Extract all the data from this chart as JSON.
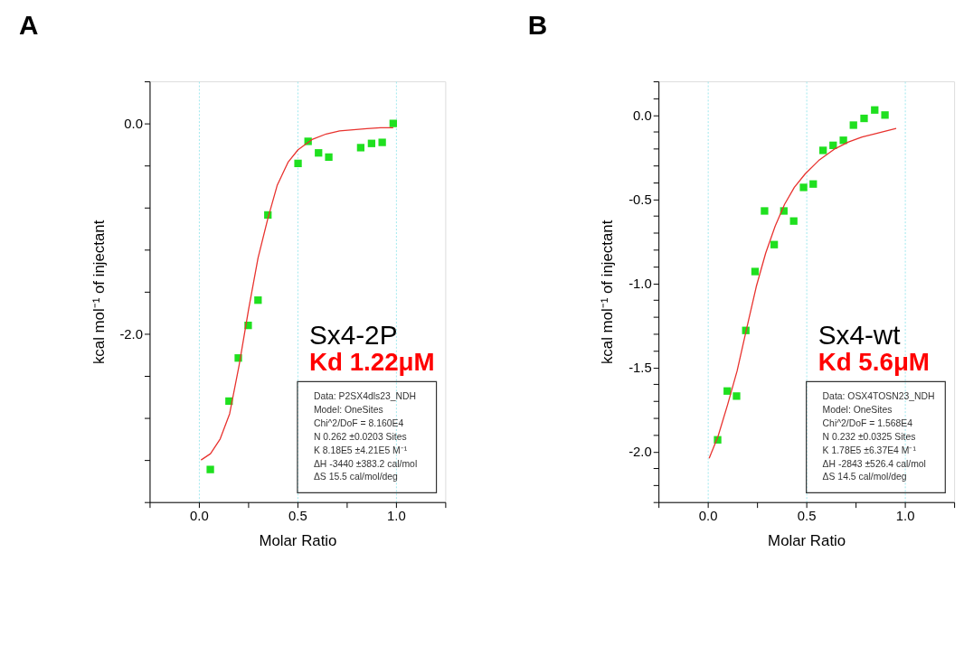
{
  "chart_data": [
    {
      "type": "scatter",
      "title": "A",
      "xlabel": "Molar Ratio",
      "ylabel": "kcal mol⁻¹ of injectant",
      "xlim": [
        -0.25,
        1.25
      ],
      "ylim": [
        -3.6,
        0.4
      ],
      "xticks": [
        {
          "value": -0.25,
          "label": null
        },
        {
          "value": 0,
          "label": "0.0"
        },
        {
          "value": 0.25,
          "label": null
        },
        {
          "value": 0.5,
          "label": "0.5"
        },
        {
          "value": 0.75,
          "label": null
        },
        {
          "value": 1,
          "label": "1.0"
        },
        {
          "value": 1.25,
          "label": null
        }
      ],
      "yticks": [
        {
          "value": -3.6,
          "label": null
        },
        {
          "value": -3.2,
          "label": null
        },
        {
          "value": -2.8,
          "label": null
        },
        {
          "value": -2.4,
          "label": null
        },
        {
          "value": -2,
          "label": "-2.0"
        },
        {
          "value": -1.6,
          "label": null
        },
        {
          "value": -1.2,
          "label": null
        },
        {
          "value": -0.8,
          "label": null
        },
        {
          "value": -0.4,
          "label": null
        },
        {
          "value": 0,
          "label": "0.0"
        },
        {
          "value": 0.4,
          "label": null
        }
      ],
      "grid": "x",
      "marker": "square",
      "series": [
        {
          "color": "#1fe01f",
          "x": [
            0.058,
            0.153,
            0.2,
            0.25,
            0.3,
            0.35,
            0.503,
            0.554,
            0.607,
            0.659,
            0.821,
            0.876,
            0.93,
            0.986
          ],
          "values": [
            -3.29,
            -2.64,
            -2.23,
            -1.92,
            -1.68,
            -0.87,
            -0.38,
            -0.17,
            -0.28,
            -0.32,
            -0.23,
            -0.19,
            -0.18,
            0.0
          ]
        },
        {
          "type": "line",
          "color": "#e8322e",
          "marker": "none",
          "line_style": "solid",
          "x": [
            0.011,
            0.059,
            0.108,
            0.156,
            0.204,
            0.252,
            0.3,
            0.349,
            0.397,
            0.452,
            0.503,
            0.577,
            0.646,
            0.714,
            0.783,
            0.852,
            0.921,
            0.986
          ],
          "values": [
            -3.2,
            -3.14,
            -3.0,
            -2.76,
            -2.3,
            -1.77,
            -1.28,
            -0.91,
            -0.59,
            -0.37,
            -0.25,
            -0.15,
            -0.1,
            -0.07,
            -0.06,
            -0.05,
            -0.04,
            -0.04
          ]
        }
      ],
      "annotations": [
        "Sx4-2P",
        "Kd 1.22μM",
        "Data: P2SX4dls23_NDH",
        "Model: OneSites",
        "Chi^2/DoF = 8.160E4",
        "N 0.262 ±0.0203 Sites",
        "K 8.18E5 ±4.21E5 M⁻¹",
        "ΔH -3440 ±383.2 cal/mol",
        "ΔS 15.5 cal/mol/deg"
      ]
    },
    {
      "type": "scatter",
      "title": "B",
      "xlabel": "Molar Ratio",
      "ylabel": "kcal mol⁻¹ of injectant",
      "xlim": [
        -0.25,
        1.25
      ],
      "ylim": [
        -2.3,
        0.2
      ],
      "xticks": [
        {
          "value": -0.25,
          "label": null
        },
        {
          "value": 0,
          "label": "0.0"
        },
        {
          "value": 0.25,
          "label": null
        },
        {
          "value": 0.5,
          "label": "0.5"
        },
        {
          "value": 0.75,
          "label": null
        },
        {
          "value": 1,
          "label": "1.0"
        },
        {
          "value": 1.25,
          "label": null
        }
      ],
      "yticks": [
        {
          "value": -2.3,
          "label": null
        },
        {
          "value": -2.2,
          "label": null
        },
        {
          "value": -2.1,
          "label": null
        },
        {
          "value": -2,
          "label": "-2.0"
        },
        {
          "value": -1.9,
          "label": null
        },
        {
          "value": -1.8,
          "label": null
        },
        {
          "value": -1.7,
          "label": null
        },
        {
          "value": -1.6,
          "label": null
        },
        {
          "value": -1.5,
          "label": "-1.5"
        },
        {
          "value": -1.4,
          "label": null
        },
        {
          "value": -1.3,
          "label": null
        },
        {
          "value": -1.2,
          "label": null
        },
        {
          "value": -1.1,
          "label": null
        },
        {
          "value": -1,
          "label": "-1.0"
        },
        {
          "value": -0.9,
          "label": null
        },
        {
          "value": -0.8,
          "label": null
        },
        {
          "value": -0.7,
          "label": null
        },
        {
          "value": -0.6,
          "label": null
        },
        {
          "value": -0.5,
          "label": "-0.5"
        },
        {
          "value": -0.4,
          "label": null
        },
        {
          "value": -0.3,
          "label": null
        },
        {
          "value": -0.2,
          "label": null
        },
        {
          "value": -0.1,
          "label": null
        },
        {
          "value": 0,
          "label": "0.0"
        },
        {
          "value": 0.1,
          "label": null
        },
        {
          "value": 0.2,
          "label": null
        }
      ],
      "grid": "x",
      "marker": "square",
      "series": [
        {
          "color": "#1fe01f",
          "x": [
            0.05,
            0.099,
            0.146,
            0.193,
            0.24,
            0.288,
            0.337,
            0.386,
            0.436,
            0.486,
            0.535,
            0.585,
            0.636,
            0.688,
            0.739,
            0.793,
            0.847,
            0.899
          ],
          "values": [
            -1.93,
            -1.64,
            -1.67,
            -1.28,
            -0.93,
            -0.57,
            -0.77,
            -0.57,
            -0.63,
            -0.43,
            -0.41,
            -0.21,
            -0.18,
            -0.15,
            -0.06,
            -0.02,
            0.03,
            0.0
          ]
        },
        {
          "type": "line",
          "color": "#e8322e",
          "marker": "none",
          "line_style": "solid",
          "x": [
            0.007,
            0.052,
            0.101,
            0.149,
            0.197,
            0.246,
            0.294,
            0.342,
            0.39,
            0.439,
            0.494,
            0.563,
            0.646,
            0.714,
            0.783,
            0.852,
            0.956
          ],
          "values": [
            -2.04,
            -1.91,
            -1.72,
            -1.52,
            -1.27,
            -1.02,
            -0.82,
            -0.66,
            -0.53,
            -0.43,
            -0.35,
            -0.27,
            -0.2,
            -0.16,
            -0.13,
            -0.11,
            -0.08
          ]
        }
      ],
      "annotations": [
        "Sx4-wt",
        "Kd 5.6μM",
        "Data: OSX4TOSN23_NDH",
        "Model: OneSites",
        "Chi^2/DoF = 1.568E4",
        "N 0.232 ±0.0325 Sites",
        "K 1.78E5 ±6.37E4 M⁻¹",
        "ΔH -2843 ±526.4 cal/mol",
        "ΔS 14.5 cal/mol/deg"
      ]
    }
  ]
}
